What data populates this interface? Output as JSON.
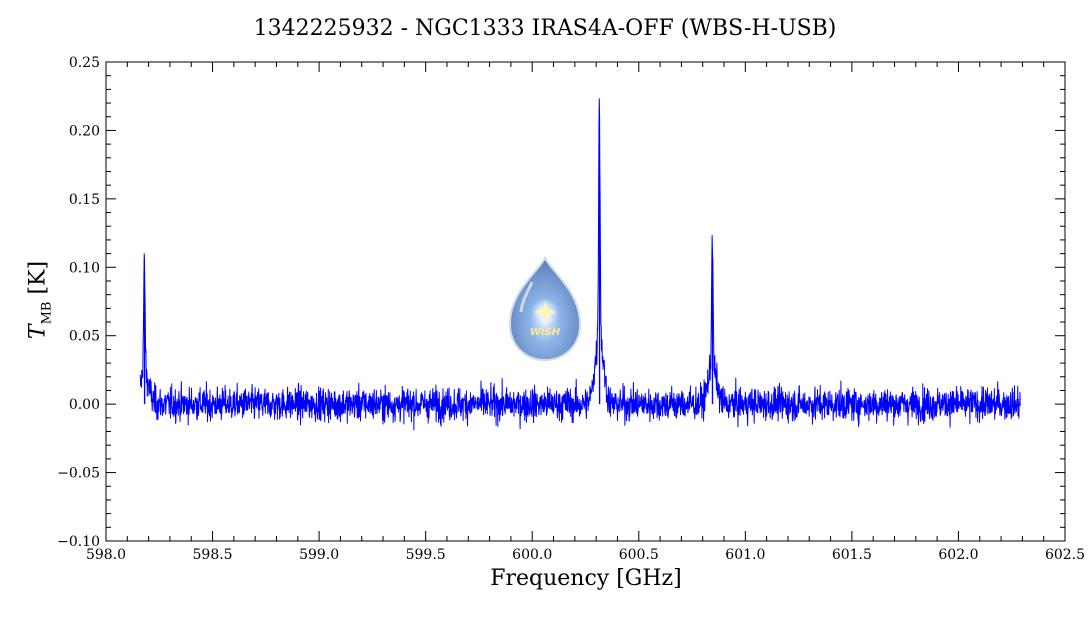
{
  "chart_data": {
    "type": "line",
    "title": "1342225932 - NGC1333 IRAS4A-OFF (WBS-H-USB)",
    "xlabel": "Frequency [GHz]",
    "ylabel_symbol": "T",
    "ylabel_subscript": "MB",
    "ylabel_unit": "[K]",
    "xlim": [
      598.0,
      602.5
    ],
    "ylim": [
      -0.1,
      0.25
    ],
    "x_ticks": [
      598.0,
      598.5,
      599.0,
      599.5,
      600.0,
      600.5,
      601.0,
      601.5,
      602.0,
      602.5
    ],
    "x_tick_labels": [
      "598.0",
      "598.5",
      "599.0",
      "599.5",
      "600.0",
      "600.5",
      "601.0",
      "601.5",
      "602.0",
      "602.5"
    ],
    "y_ticks": [
      -0.1,
      -0.05,
      0.0,
      0.05,
      0.1,
      0.15,
      0.2,
      0.25
    ],
    "y_tick_labels": [
      "−0.10",
      "−0.05",
      "0.00",
      "0.05",
      "0.10",
      "0.15",
      "0.20",
      "0.25"
    ],
    "grid": false,
    "series": [
      {
        "color": "#0000ff",
        "x_start": 598.16,
        "x_end": 602.29,
        "noise_rms": 0.012,
        "features": [
          {
            "x": 598.18,
            "peak": 0.089
          },
          {
            "x": 600.315,
            "peak": 0.193
          },
          {
            "x": 600.845,
            "peak": 0.107
          }
        ]
      }
    ],
    "logo_text": "WISH"
  }
}
